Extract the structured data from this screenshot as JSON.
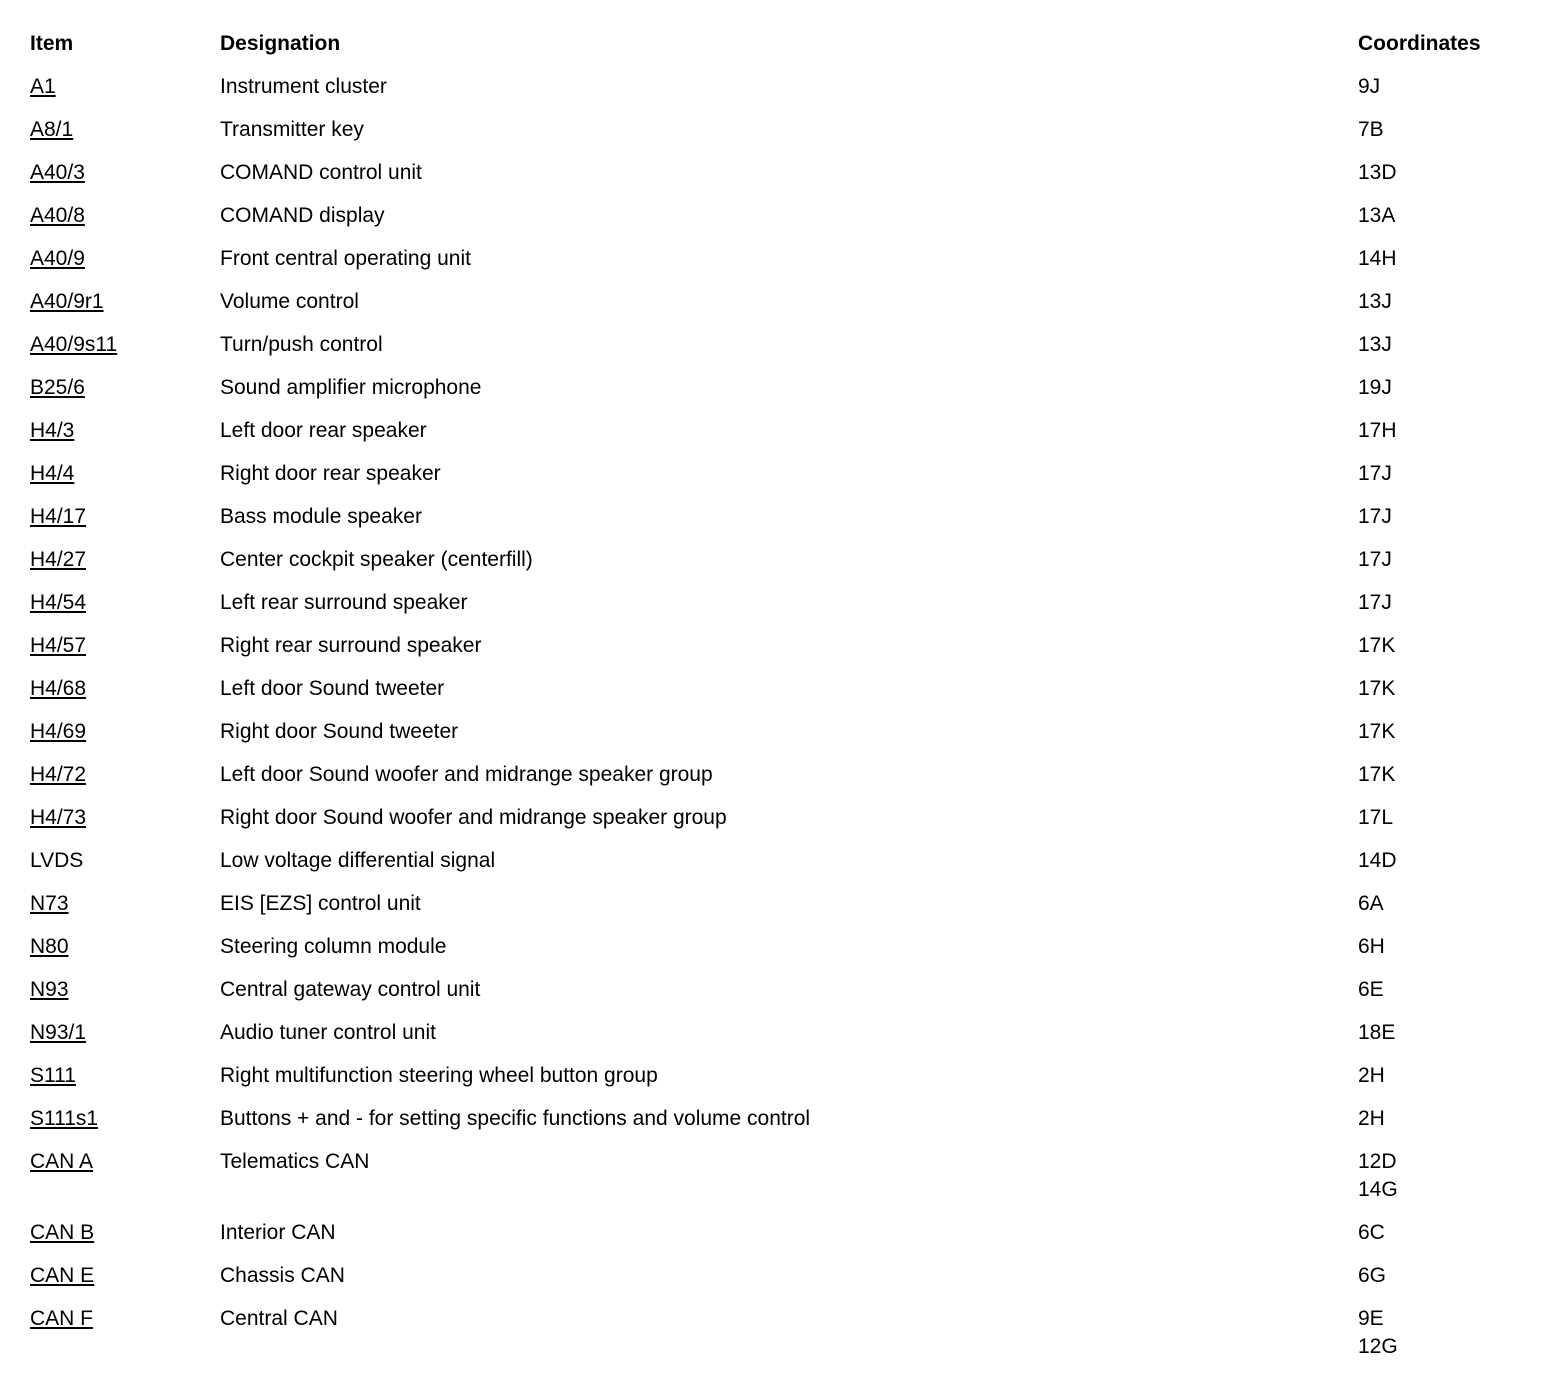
{
  "table": {
    "headers": {
      "item": "Item",
      "designation": "Designation",
      "coordinates": "Coordinates"
    },
    "rows": [
      {
        "item": "A1",
        "underlined": true,
        "designation": "Instrument cluster",
        "coordinates": [
          "9J"
        ]
      },
      {
        "item": "A8/1",
        "underlined": true,
        "designation": "Transmitter key",
        "coordinates": [
          "7B"
        ]
      },
      {
        "item": "A40/3",
        "underlined": true,
        "designation": "COMAND control unit",
        "coordinates": [
          "13D"
        ]
      },
      {
        "item": "A40/8",
        "underlined": true,
        "designation": "COMAND display",
        "coordinates": [
          "13A"
        ]
      },
      {
        "item": "A40/9",
        "underlined": true,
        "designation": "Front central operating unit",
        "coordinates": [
          "14H"
        ]
      },
      {
        "item": "A40/9r1",
        "underlined": true,
        "designation": "Volume control",
        "coordinates": [
          "13J"
        ]
      },
      {
        "item": "A40/9s11",
        "underlined": true,
        "designation": "Turn/push control",
        "coordinates": [
          "13J"
        ]
      },
      {
        "item": "B25/6",
        "underlined": true,
        "designation": "Sound amplifier microphone",
        "coordinates": [
          "19J"
        ]
      },
      {
        "item": "H4/3",
        "underlined": true,
        "designation": "Left door rear speaker",
        "coordinates": [
          "17H"
        ]
      },
      {
        "item": "H4/4",
        "underlined": true,
        "designation": "Right door rear speaker",
        "coordinates": [
          "17J"
        ]
      },
      {
        "item": "H4/17",
        "underlined": true,
        "designation": "Bass module speaker",
        "coordinates": [
          "17J"
        ]
      },
      {
        "item": "H4/27",
        "underlined": true,
        "designation": "Center cockpit speaker (centerfill)",
        "coordinates": [
          "17J"
        ]
      },
      {
        "item": "H4/54",
        "underlined": true,
        "designation": "Left rear surround speaker",
        "coordinates": [
          "17J"
        ]
      },
      {
        "item": "H4/57",
        "underlined": true,
        "designation": "Right rear surround speaker",
        "coordinates": [
          "17K"
        ]
      },
      {
        "item": "H4/68",
        "underlined": true,
        "designation": "Left door Sound tweeter",
        "coordinates": [
          "17K"
        ]
      },
      {
        "item": "H4/69",
        "underlined": true,
        "designation": "Right door Sound tweeter",
        "coordinates": [
          "17K"
        ]
      },
      {
        "item": "H4/72",
        "underlined": true,
        "designation": "Left door Sound woofer and midrange speaker group",
        "coordinates": [
          "17K"
        ]
      },
      {
        "item": "H4/73",
        "underlined": true,
        "designation": "Right door Sound woofer and midrange speaker group",
        "coordinates": [
          "17L"
        ]
      },
      {
        "item": "LVDS",
        "underlined": false,
        "designation": "Low voltage differential signal",
        "coordinates": [
          "14D"
        ]
      },
      {
        "item": "N73",
        "underlined": true,
        "designation": "EIS [EZS] control unit",
        "coordinates": [
          "6A"
        ]
      },
      {
        "item": "N80",
        "underlined": true,
        "designation": "Steering column module",
        "coordinates": [
          "6H"
        ]
      },
      {
        "item": "N93",
        "underlined": true,
        "designation": "Central gateway control unit",
        "coordinates": [
          "6E"
        ]
      },
      {
        "item": "N93/1",
        "underlined": true,
        "designation": "Audio tuner control unit",
        "coordinates": [
          "18E"
        ]
      },
      {
        "item": "S111",
        "underlined": true,
        "designation": "Right multifunction steering wheel button group",
        "coordinates": [
          "2H"
        ]
      },
      {
        "item": "S111s1",
        "underlined": true,
        "designation": "Buttons + and - for setting specific functions and volume control",
        "coordinates": [
          "2H"
        ]
      },
      {
        "item": "CAN A",
        "underlined": true,
        "designation": "Telematics CAN",
        "coordinates": [
          "12D",
          "14G"
        ]
      },
      {
        "item": "CAN B",
        "underlined": true,
        "designation": "Interior CAN",
        "coordinates": [
          "6C"
        ]
      },
      {
        "item": "CAN E",
        "underlined": true,
        "designation": "Chassis CAN",
        "coordinates": [
          "6G"
        ]
      },
      {
        "item": "CAN F",
        "underlined": true,
        "designation": "Central CAN",
        "coordinates": [
          "9E",
          "12G"
        ]
      }
    ]
  }
}
